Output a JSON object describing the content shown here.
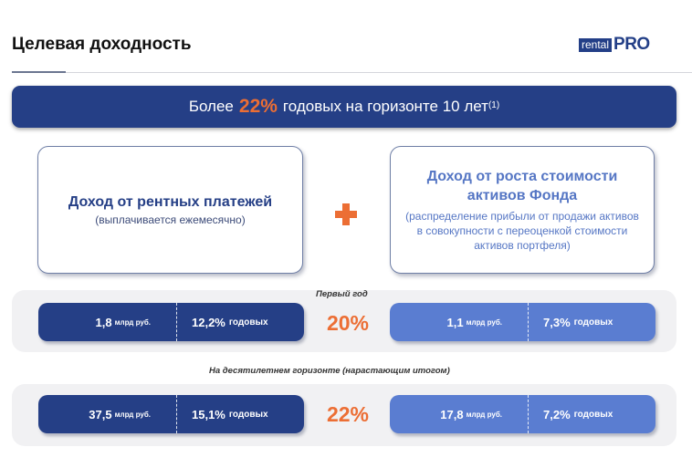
{
  "header": {
    "title": "Целевая доходность",
    "logo": {
      "part1": "rental",
      "part2": "PRO"
    }
  },
  "banner": {
    "prefix": "Более",
    "highlight": "22%",
    "suffix": "годовых на горизонте 10 лет",
    "footnote": "(1)"
  },
  "cards": {
    "left": {
      "title": "Доход от рентных платежей",
      "subtitle": "(выплачивается ежемесячно)"
    },
    "right": {
      "title": "Доход от роста стоимости активов Фонда",
      "subtitle": "(распределение прибыли от продажи активов в совокупности с переоценкой стоимости активов портфеля)"
    }
  },
  "rows": [
    {
      "label": "Первый год",
      "total": "20%",
      "left": {
        "amount": "1,8",
        "amount_unit": "млрд руб.",
        "rate": "12,2%",
        "rate_unit": "годовых"
      },
      "right": {
        "amount": "1,1",
        "amount_unit": "млрд руб.",
        "rate": "7,3%",
        "rate_unit": "годовых"
      }
    },
    {
      "label": "На десятилетнем горизонте (нарастающим итогом)",
      "total": "22%",
      "left": {
        "amount": "37,5",
        "amount_unit": "млрд руб.",
        "rate": "15,1%",
        "rate_unit": "годовых"
      },
      "right": {
        "amount": "17,8",
        "amount_unit": "млрд руб.",
        "rate": "7,2%",
        "rate_unit": "годовых"
      }
    }
  ],
  "colors": {
    "navy": "#253f86",
    "light_blue": "#5a7dd1",
    "accent_orange": "#ec6e34",
    "row_bg": "#f1f1f3"
  }
}
